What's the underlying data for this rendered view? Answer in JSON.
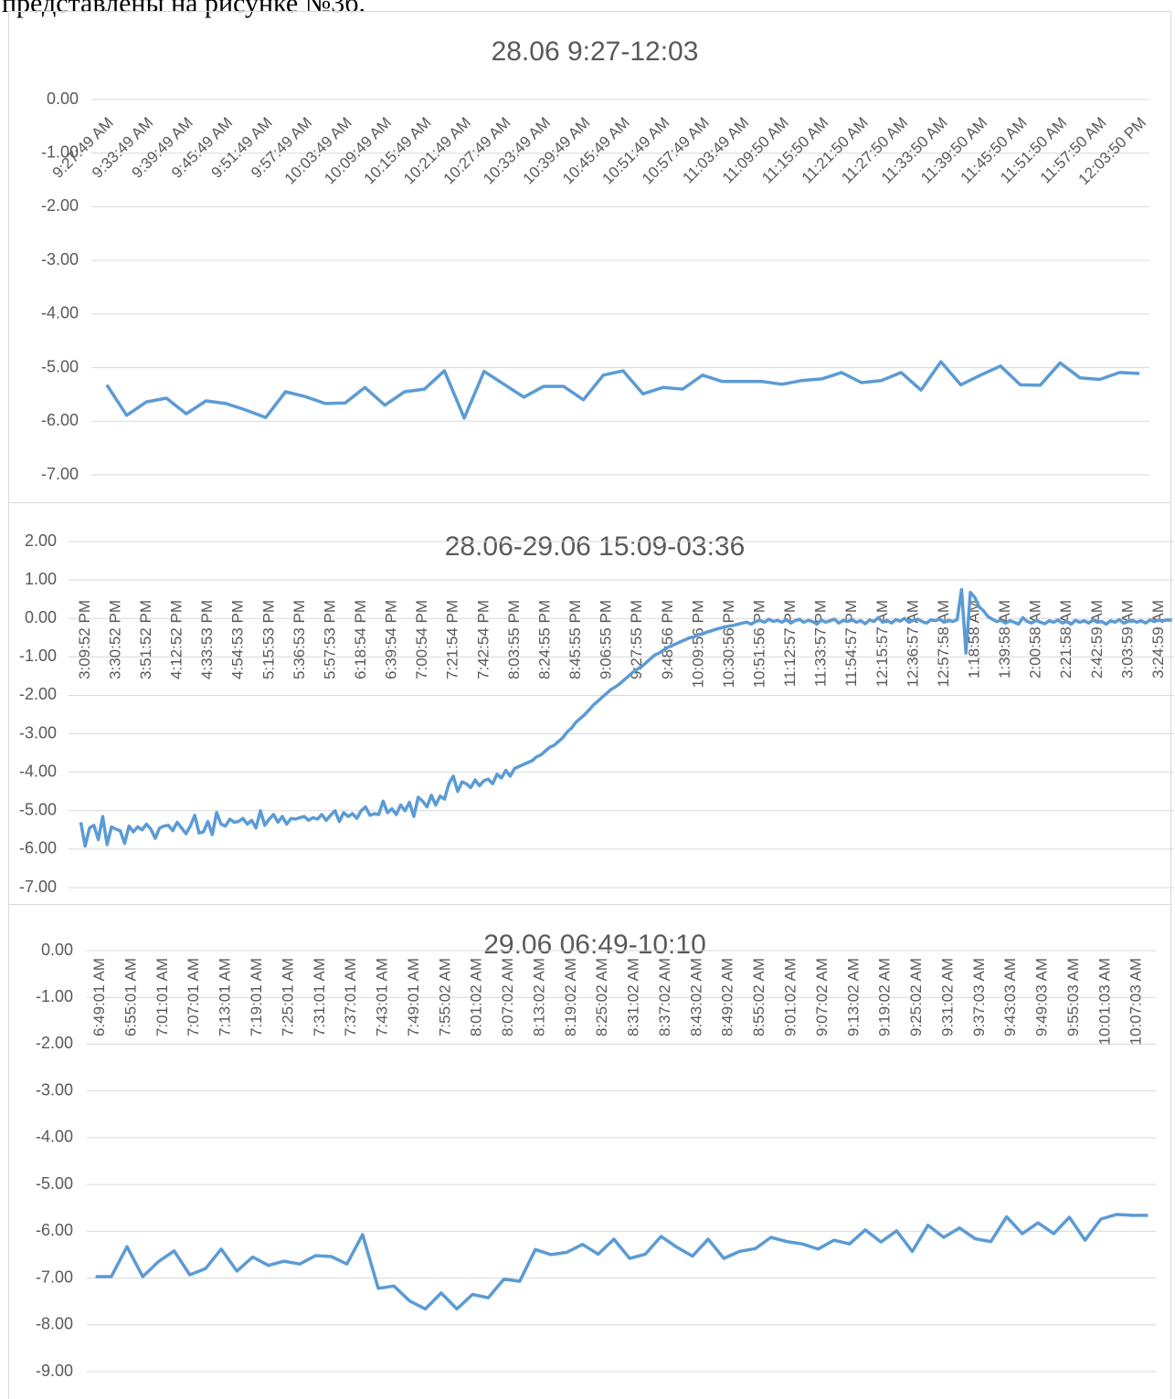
{
  "text": "представлены на рисунке №3б.",
  "chart_data": [
    {
      "type": "line",
      "title": "28.06 9:27-12:03",
      "grid": true,
      "label_rotation": -45,
      "categories": [
        "9:27:49 AM",
        null,
        "9:33:49 AM",
        null,
        "9:39:49 AM",
        null,
        "9:45:49 AM",
        null,
        "9:51:49 AM",
        null,
        "9:57:49 AM",
        null,
        "10:03:49 AM",
        null,
        "10:09:49 AM",
        null,
        "10:15:49 AM",
        null,
        "10:21:49 AM",
        null,
        "10:27:49 AM",
        null,
        "10:33:49 AM",
        null,
        "10:39:49 AM",
        null,
        "10:45:49 AM",
        null,
        "10:51:49 AM",
        null,
        "10:57:49 AM",
        null,
        "11:03:49 AM",
        null,
        "11:09:50 AM",
        null,
        "11:15:50 AM",
        null,
        "11:21:50 AM",
        null,
        "11:27:50 AM",
        null,
        "11:33:50 AM",
        null,
        "11:39:50 AM",
        null,
        "11:45:50 AM",
        null,
        "11:51:50 AM",
        null,
        "11:57:50 AM",
        null,
        "12:03:50 PM"
      ],
      "values": [
        -5.32,
        -5.89,
        -5.64,
        -5.57,
        -5.86,
        -5.62,
        -5.67,
        -5.79,
        -5.93,
        -5.45,
        -5.54,
        -5.67,
        -5.66,
        -5.37,
        -5.7,
        -5.45,
        -5.4,
        -5.06,
        -5.94,
        -5.07,
        -5.31,
        -5.55,
        -5.35,
        -5.35,
        -5.6,
        -5.14,
        -5.06,
        -5.49,
        -5.37,
        -5.4,
        -5.14,
        -5.26,
        -5.26,
        -5.26,
        -5.31,
        -5.24,
        -5.21,
        -5.09,
        -5.28,
        -5.24,
        -5.09,
        -5.42,
        -4.89,
        -5.32,
        -5.14,
        -4.97,
        -5.32,
        -5.33,
        -4.91,
        -5.19,
        -5.22,
        -5.09,
        -5.11
      ],
      "color": "#5b9bd5",
      "ylim": [
        -7,
        0
      ],
      "yticks": [
        {
          "value": 0,
          "label": "0.00"
        },
        {
          "value": -1,
          "label": "-1.00"
        },
        {
          "value": -2,
          "label": "-2.00"
        },
        {
          "value": -3,
          "label": "-3.00"
        },
        {
          "value": -4,
          "label": "-4.00"
        },
        {
          "value": -5,
          "label": "-5.00"
        },
        {
          "value": -6,
          "label": "-6.00"
        },
        {
          "value": -7,
          "label": "-7.00"
        }
      ]
    },
    {
      "type": "line",
      "title": "28.06-29.06 15:09-03:36",
      "grid": true,
      "label_rotation": -90,
      "categories": [
        "3:09:52 PM",
        null,
        null,
        null,
        null,
        null,
        null,
        "3:30:52 PM",
        null,
        null,
        null,
        null,
        null,
        null,
        "3:51:52 PM",
        null,
        null,
        null,
        null,
        null,
        null,
        "4:12:52 PM",
        null,
        null,
        null,
        null,
        null,
        null,
        "4:33:53 PM",
        null,
        null,
        null,
        null,
        null,
        null,
        "4:54:53 PM",
        null,
        null,
        null,
        null,
        null,
        null,
        "5:15:53 PM",
        null,
        null,
        null,
        null,
        null,
        null,
        "5:36:53 PM",
        null,
        null,
        null,
        null,
        null,
        null,
        "5:57:53 PM",
        null,
        null,
        null,
        null,
        null,
        null,
        "6:18:54 PM",
        null,
        null,
        null,
        null,
        null,
        null,
        "6:39:54 PM",
        null,
        null,
        null,
        null,
        null,
        null,
        "7:00:54 PM",
        null,
        null,
        null,
        null,
        null,
        null,
        "7:21:54 PM",
        null,
        null,
        null,
        null,
        null,
        null,
        "7:42:54 PM",
        null,
        null,
        null,
        null,
        null,
        null,
        "8:03:55 PM",
        null,
        null,
        null,
        null,
        null,
        null,
        "8:24:55 PM",
        null,
        null,
        null,
        null,
        null,
        null,
        "8:45:55 PM",
        null,
        null,
        null,
        null,
        null,
        null,
        "9:06:55 PM",
        null,
        null,
        null,
        null,
        null,
        null,
        "9:27:55 PM",
        null,
        null,
        null,
        null,
        null,
        null,
        "9:48:56 PM",
        null,
        null,
        null,
        null,
        null,
        null,
        "10:09:56 PM",
        null,
        null,
        null,
        null,
        null,
        null,
        "10:30:56 PM",
        null,
        null,
        null,
        null,
        null,
        null,
        "10:51:56 PM",
        null,
        null,
        null,
        null,
        null,
        null,
        "11:12:57 PM",
        null,
        null,
        null,
        null,
        null,
        null,
        "11:33:57 PM",
        null,
        null,
        null,
        null,
        null,
        null,
        "11:54:57 PM",
        null,
        null,
        null,
        null,
        null,
        null,
        "12:15:57 AM",
        null,
        null,
        null,
        null,
        null,
        null,
        "12:36:57 AM",
        null,
        null,
        null,
        null,
        null,
        null,
        "12:57:58 AM",
        null,
        null,
        null,
        null,
        null,
        null,
        "1:18:58 AM",
        null,
        null,
        null,
        null,
        null,
        null,
        "1:39:58 AM",
        null,
        null,
        null,
        null,
        null,
        null,
        "2:00:58 AM",
        null,
        null,
        null,
        null,
        null,
        null,
        "2:21:58 AM",
        null,
        null,
        null,
        null,
        null,
        null,
        "2:42:59 AM",
        null,
        null,
        null,
        null,
        null,
        null,
        "3:03:59 AM",
        null,
        null,
        null,
        null,
        null,
        null,
        "3:24:59 AM",
        null,
        null,
        null,
        null
      ],
      "values": [
        -5.3,
        -5.92,
        -5.45,
        -5.38,
        -5.75,
        -5.15,
        -5.88,
        -5.42,
        -5.48,
        -5.52,
        -5.85,
        -5.4,
        -5.55,
        -5.42,
        -5.5,
        -5.35,
        -5.48,
        -5.72,
        -5.45,
        -5.4,
        -5.38,
        -5.52,
        -5.3,
        -5.45,
        -5.6,
        -5.4,
        -5.12,
        -5.58,
        -5.55,
        -5.28,
        -5.62,
        -5.05,
        -5.35,
        -5.4,
        -5.22,
        -5.3,
        -5.28,
        -5.2,
        -5.35,
        -5.25,
        -5.45,
        -5.0,
        -5.38,
        -5.22,
        -5.1,
        -5.3,
        -5.15,
        -5.35,
        -5.2,
        -5.22,
        -5.18,
        -5.15,
        -5.25,
        -5.18,
        -5.22,
        -5.1,
        -5.25,
        -5.12,
        -5.0,
        -5.28,
        -5.05,
        -5.15,
        -5.08,
        -5.2,
        -5.0,
        -4.9,
        -5.12,
        -5.08,
        -5.1,
        -4.75,
        -5.05,
        -4.95,
        -5.1,
        -4.85,
        -5.0,
        -4.78,
        -5.15,
        -4.65,
        -4.75,
        -4.9,
        -4.6,
        -4.85,
        -4.62,
        -4.7,
        -4.3,
        -4.1,
        -4.5,
        -4.25,
        -4.3,
        -4.4,
        -4.2,
        -4.35,
        -4.22,
        -4.18,
        -4.3,
        -4.05,
        -4.15,
        -3.95,
        -4.1,
        -3.9,
        -3.85,
        -3.8,
        -3.75,
        -3.7,
        -3.6,
        -3.55,
        -3.45,
        -3.35,
        -3.3,
        -3.2,
        -3.1,
        -2.95,
        -2.85,
        -2.7,
        -2.6,
        -2.5,
        -2.38,
        -2.25,
        -2.15,
        -2.05,
        -1.95,
        -1.85,
        -1.78,
        -1.7,
        -1.6,
        -1.5,
        -1.4,
        -1.32,
        -1.25,
        -1.15,
        -1.05,
        -0.95,
        -0.9,
        -0.82,
        -0.75,
        -0.7,
        -0.65,
        -0.6,
        -0.55,
        -0.5,
        -0.48,
        -0.42,
        -0.4,
        -0.35,
        -0.32,
        -0.28,
        -0.25,
        -0.22,
        -0.2,
        -0.18,
        -0.15,
        -0.12,
        -0.1,
        -0.15,
        -0.08,
        -0.05,
        -0.1,
        -0.02,
        -0.08,
        -0.05,
        -0.1,
        -0.03,
        -0.12,
        -0.06,
        -0.02,
        -0.1,
        -0.05,
        -0.08,
        -0.15,
        -0.04,
        -0.1,
        -0.06,
        -0.02,
        -0.12,
        -0.05,
        -0.08,
        -0.03,
        -0.1,
        -0.06,
        -0.14,
        -0.04,
        -0.08,
        0.02,
        -0.1,
        -0.05,
        -0.12,
        -0.03,
        -0.07,
        0.0,
        -0.1,
        -0.05,
        -0.02,
        -0.08,
        -0.12,
        -0.04,
        -0.06,
        -0.02,
        -0.1,
        -0.05,
        -0.08,
        -0.03,
        0.75,
        -0.9,
        0.68,
        0.55,
        0.3,
        0.2,
        0.05,
        -0.02,
        -0.08,
        -0.05,
        -0.12,
        -0.06,
        -0.1,
        -0.15,
        0.02,
        -0.08,
        -0.12,
        -0.05,
        -0.1,
        -0.14,
        -0.06,
        -0.1,
        -0.04,
        -0.12,
        -0.08,
        -0.15,
        -0.05,
        -0.1,
        -0.06,
        -0.12,
        -0.04,
        -0.1,
        -0.08,
        -0.15,
        -0.06,
        -0.1,
        -0.03,
        -0.12,
        -0.08,
        -0.05,
        -0.1,
        -0.06,
        -0.12,
        -0.04,
        -0.08,
        -0.05,
        -0.06,
        -0.04,
        -0.05
      ],
      "color": "#5b9bd5",
      "ylim": [
        -7,
        2
      ],
      "yticks": [
        {
          "value": 2,
          "label": "2.00"
        },
        {
          "value": 1,
          "label": "1.00"
        },
        {
          "value": 0,
          "label": "0.00"
        },
        {
          "value": -1,
          "label": "-1.00"
        },
        {
          "value": -2,
          "label": "-2.00"
        },
        {
          "value": -3,
          "label": "-3.00"
        },
        {
          "value": -4,
          "label": "-4.00"
        },
        {
          "value": -5,
          "label": "-5.00"
        },
        {
          "value": -6,
          "label": "-6.00"
        },
        {
          "value": -7,
          "label": "-7.00"
        }
      ]
    },
    {
      "type": "line",
      "title": "29.06 06:49-10:10",
      "grid": true,
      "label_rotation": -90,
      "categories": [
        "6:49:01 AM",
        null,
        "6:55:01 AM",
        null,
        "7:01:01 AM",
        null,
        "7:07:01 AM",
        null,
        "7:13:01 AM",
        null,
        "7:19:01 AM",
        null,
        "7:25:01 AM",
        null,
        "7:31:01 AM",
        null,
        "7:37:01 AM",
        null,
        "7:43:01 AM",
        null,
        "7:49:01 AM",
        null,
        "7:55:02 AM",
        null,
        "8:01:02 AM",
        null,
        "8:07:02 AM",
        null,
        "8:13:02 AM",
        null,
        "8:19:02 AM",
        null,
        "8:25:02 AM",
        null,
        "8:31:02 AM",
        null,
        "8:37:02 AM",
        null,
        "8:43:02 AM",
        null,
        "8:49:02 AM",
        null,
        "8:55:02 AM",
        null,
        "9:01:02 AM",
        null,
        "9:07:02 AM",
        null,
        "9:13:02 AM",
        null,
        "9:19:02 AM",
        null,
        "9:25:02 AM",
        null,
        "9:31:02 AM",
        null,
        "9:37:03 AM",
        null,
        "9:43:03 AM",
        null,
        "9:49:03 AM",
        null,
        "9:55:03 AM",
        null,
        "10:01:03 AM",
        null,
        "10:07:03 AM",
        null
      ],
      "values": [
        -6.97,
        -6.97,
        -6.33,
        -6.97,
        -6.65,
        -6.42,
        -6.93,
        -6.8,
        -6.38,
        -6.85,
        -6.55,
        -6.73,
        -6.64,
        -6.7,
        -6.52,
        -6.54,
        -6.7,
        -6.07,
        -7.22,
        -7.17,
        -7.49,
        -7.66,
        -7.32,
        -7.66,
        -7.35,
        -7.42,
        -7.02,
        -7.07,
        -6.39,
        -6.5,
        -6.45,
        -6.28,
        -6.49,
        -6.17,
        -6.58,
        -6.49,
        -6.11,
        -6.34,
        -6.53,
        -6.17,
        -6.58,
        -6.43,
        -6.37,
        -6.13,
        -6.22,
        -6.27,
        -6.38,
        -6.19,
        -6.27,
        -5.97,
        -6.23,
        -5.99,
        -6.43,
        -5.87,
        -6.13,
        -5.93,
        -6.16,
        -6.22,
        -5.69,
        -6.05,
        -5.82,
        -6.05,
        -5.7,
        -6.19,
        -5.74,
        -5.64,
        -5.66,
        -5.66
      ],
      "color": "#5b9bd5",
      "ylim": [
        -9,
        0
      ],
      "yticks": [
        {
          "value": 0,
          "label": "0.00"
        },
        {
          "value": -1,
          "label": "-1.00"
        },
        {
          "value": -2,
          "label": "-2.00"
        },
        {
          "value": -3,
          "label": "-3.00"
        },
        {
          "value": -4,
          "label": "-4.00"
        },
        {
          "value": -5,
          "label": "-5.00"
        },
        {
          "value": -6,
          "label": "-6.00"
        },
        {
          "value": -7,
          "label": "-7.00"
        },
        {
          "value": -8,
          "label": "-8.00"
        },
        {
          "value": -9,
          "label": "-9.00"
        }
      ]
    }
  ]
}
